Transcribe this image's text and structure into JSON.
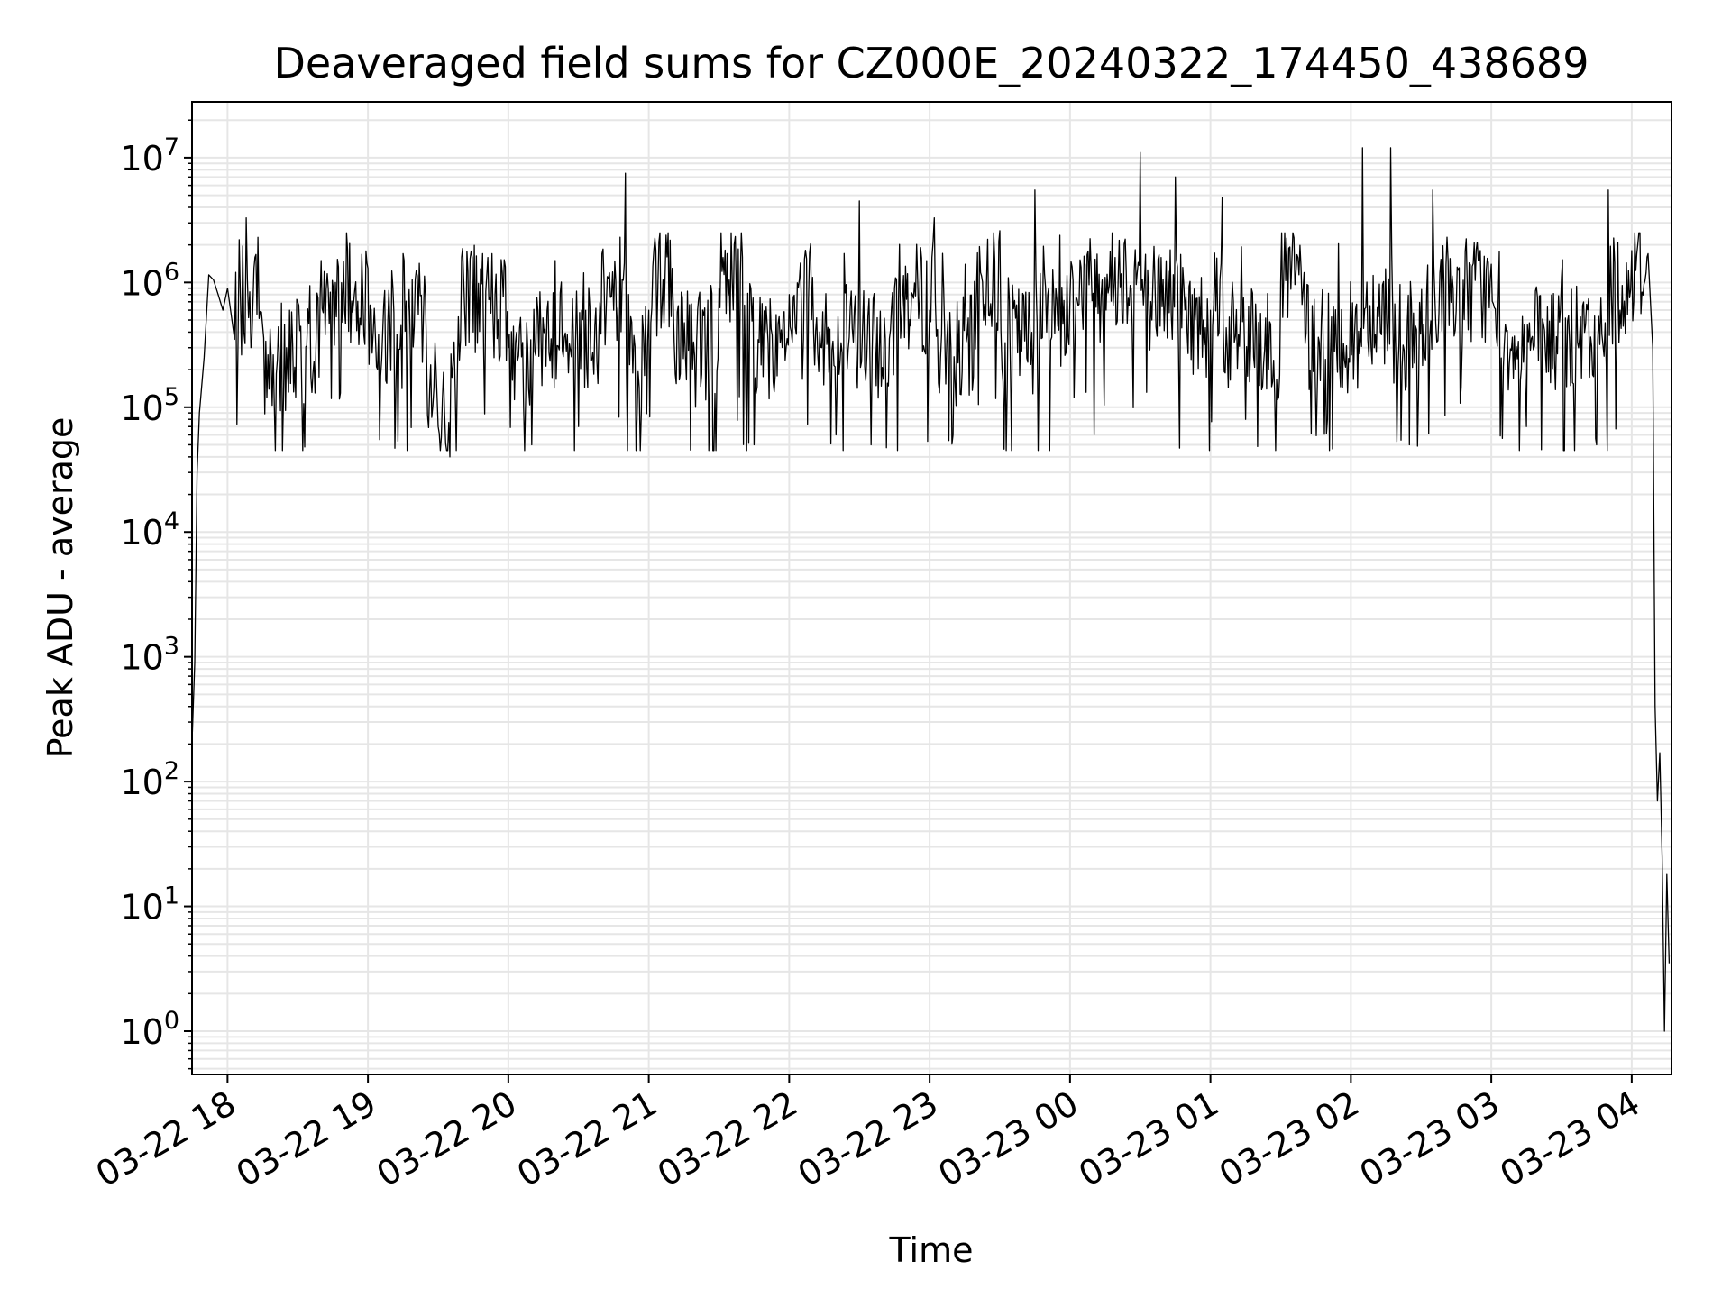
{
  "chart_data": {
    "type": "line",
    "title": "Deaveraged field sums for CZ000E_20240322_174450_438689",
    "xlabel": "Time",
    "ylabel": "Peak ADU - average",
    "yscale": "log",
    "ylim": [
      0.45,
      28000000
    ],
    "xlim": [
      "2024-03-22 17:44:50",
      "2024-03-23 04:17:00"
    ],
    "grid": true,
    "grid_color": "#e6e6e6",
    "line_color": "#000000",
    "x_ticks": [
      {
        "value": "2024-03-22 18:00",
        "label": "03-22 18"
      },
      {
        "value": "2024-03-22 19:00",
        "label": "03-22 19"
      },
      {
        "value": "2024-03-22 20:00",
        "label": "03-22 20"
      },
      {
        "value": "2024-03-22 21:00",
        "label": "03-22 21"
      },
      {
        "value": "2024-03-22 22:00",
        "label": "03-22 22"
      },
      {
        "value": "2024-03-22 23:00",
        "label": "03-22 23"
      },
      {
        "value": "2024-03-23 00:00",
        "label": "03-23 00"
      },
      {
        "value": "2024-03-23 01:00",
        "label": "03-23 01"
      },
      {
        "value": "2024-03-23 02:00",
        "label": "03-23 02"
      },
      {
        "value": "2024-03-23 03:00",
        "label": "03-23 03"
      },
      {
        "value": "2024-03-23 04:00",
        "label": "03-23 04"
      }
    ],
    "y_ticks": [
      {
        "value": 1,
        "base": "10",
        "exp": "0"
      },
      {
        "value": 10,
        "base": "10",
        "exp": "1"
      },
      {
        "value": 100,
        "base": "10",
        "exp": "2"
      },
      {
        "value": 1000,
        "base": "10",
        "exp": "3"
      },
      {
        "value": 10000,
        "base": "10",
        "exp": "4"
      },
      {
        "value": 100000,
        "base": "10",
        "exp": "5"
      },
      {
        "value": 1000000,
        "base": "10",
        "exp": "6"
      },
      {
        "value": 10000000,
        "base": "10",
        "exp": "7"
      }
    ],
    "series": [
      {
        "color": "#000000",
        "points": [
          [
            "2024-03-22 17:45",
            250
          ],
          [
            "2024-03-22 17:46",
            900
          ],
          [
            "2024-03-22 17:47",
            30000
          ],
          [
            "2024-03-22 17:48",
            90000
          ],
          [
            "2024-03-22 17:50",
            250000
          ],
          [
            "2024-03-22 17:52",
            1150000
          ],
          [
            "2024-03-22 17:54",
            1050000
          ],
          [
            "2024-03-22 17:56",
            800000
          ],
          [
            "2024-03-22 17:58",
            600000
          ],
          [
            "2024-03-22 18:00",
            900000
          ],
          [
            "2024-03-22 18:03",
            350000
          ],
          [
            "2024-03-22 18:05",
            2200000
          ],
          [
            "2024-03-22 18:07",
            400000
          ],
          [
            "2024-03-22 18:08",
            3300000
          ],
          [
            "2024-03-22 18:10",
            300000
          ],
          [
            "2024-03-22 18:13",
            2300000
          ],
          [
            "2024-03-22 18:15",
            450000
          ],
          [
            "2024-03-22 18:20",
            100000
          ],
          [
            "2024-03-22 18:30",
            700000
          ],
          [
            "2024-03-22 18:33",
            48000
          ],
          [
            "2024-03-22 18:40",
            1500000
          ],
          [
            "2024-03-22 18:50",
            600000
          ],
          [
            "2024-03-22 19:00",
            1300000
          ],
          [
            "2024-03-22 19:05",
            55000
          ],
          [
            "2024-03-22 19:15",
            1700000
          ],
          [
            "2024-03-22 19:25",
            300000
          ],
          [
            "2024-03-22 19:30",
            70000
          ],
          [
            "2024-03-22 19:35",
            40000
          ],
          [
            "2024-03-22 19:40",
            1600000
          ],
          [
            "2024-03-22 19:45",
            400000
          ],
          [
            "2024-03-22 19:53",
            1700000
          ],
          [
            "2024-03-22 20:00",
            300000
          ],
          [
            "2024-03-22 20:10",
            50000
          ],
          [
            "2024-03-22 20:20",
            1500000
          ],
          [
            "2024-03-22 20:30",
            70000
          ],
          [
            "2024-03-22 20:40",
            1700000
          ],
          [
            "2024-03-22 20:45",
            600000
          ],
          [
            "2024-03-22 20:50",
            7500000
          ],
          [
            "2024-03-22 20:55",
            80000
          ],
          [
            "2024-03-22 21:00",
            600000
          ],
          [
            "2024-03-22 21:10",
            1300000
          ],
          [
            "2024-03-22 21:20",
            100000
          ],
          [
            "2024-03-22 21:30",
            900000
          ],
          [
            "2024-03-22 21:40",
            1600000
          ],
          [
            "2024-03-22 21:45",
            50000
          ],
          [
            "2024-03-22 22:00",
            800000
          ],
          [
            "2024-03-22 22:10",
            1100000
          ],
          [
            "2024-03-22 22:20",
            60000
          ],
          [
            "2024-03-22 22:30",
            4500000
          ],
          [
            "2024-03-22 22:35",
            50000
          ],
          [
            "2024-03-22 22:45",
            900000
          ],
          [
            "2024-03-22 23:00",
            600000
          ],
          [
            "2024-03-22 23:02",
            3300000
          ],
          [
            "2024-03-22 23:10",
            60000
          ],
          [
            "2024-03-22 23:20",
            800000
          ],
          [
            "2024-03-22 23:30",
            2600000
          ],
          [
            "2024-03-22 23:35",
            45000
          ],
          [
            "2024-03-22 23:45",
            5500000
          ],
          [
            "2024-03-22 23:50",
            400000
          ],
          [
            "2024-03-23 00:00",
            800000
          ],
          [
            "2024-03-23 00:15",
            1100000
          ],
          [
            "2024-03-23 00:30",
            11000000
          ],
          [
            "2024-03-23 00:35",
            500000
          ],
          [
            "2024-03-23 00:45",
            7000000
          ],
          [
            "2024-03-23 00:50",
            400000
          ],
          [
            "2024-03-23 01:00",
            600000
          ],
          [
            "2024-03-23 01:05",
            4800000
          ],
          [
            "2024-03-23 01:15",
            80000
          ],
          [
            "2024-03-23 01:30",
            1000000
          ],
          [
            "2024-03-23 01:40",
            1200000
          ],
          [
            "2024-03-23 01:50",
            80000
          ],
          [
            "2024-03-23 02:05",
            12000000
          ],
          [
            "2024-03-23 02:10",
            300000
          ],
          [
            "2024-03-23 02:17",
            12000000
          ],
          [
            "2024-03-23 02:25",
            50000
          ],
          [
            "2024-03-23 02:35",
            5500000
          ],
          [
            "2024-03-23 02:45",
            600000
          ],
          [
            "2024-03-23 03:00",
            1400000
          ],
          [
            "2024-03-23 03:15",
            70000
          ],
          [
            "2024-03-23 03:30",
            1100000
          ],
          [
            "2024-03-23 03:45",
            50000
          ],
          [
            "2024-03-23 03:50",
            5500000
          ],
          [
            "2024-03-23 03:55",
            600000
          ],
          [
            "2024-03-23 04:00",
            1800000
          ],
          [
            "2024-03-23 04:07",
            1700000
          ],
          [
            "2024-03-23 04:09",
            300000
          ],
          [
            "2024-03-23 04:10",
            400
          ],
          [
            "2024-03-23 04:11",
            70
          ],
          [
            "2024-03-23 04:12",
            170
          ],
          [
            "2024-03-23 04:13",
            25
          ],
          [
            "2024-03-23 04:14",
            1
          ],
          [
            "2024-03-23 04:15",
            18
          ],
          [
            "2024-03-23 04:16",
            3.5
          ]
        ]
      }
    ]
  }
}
